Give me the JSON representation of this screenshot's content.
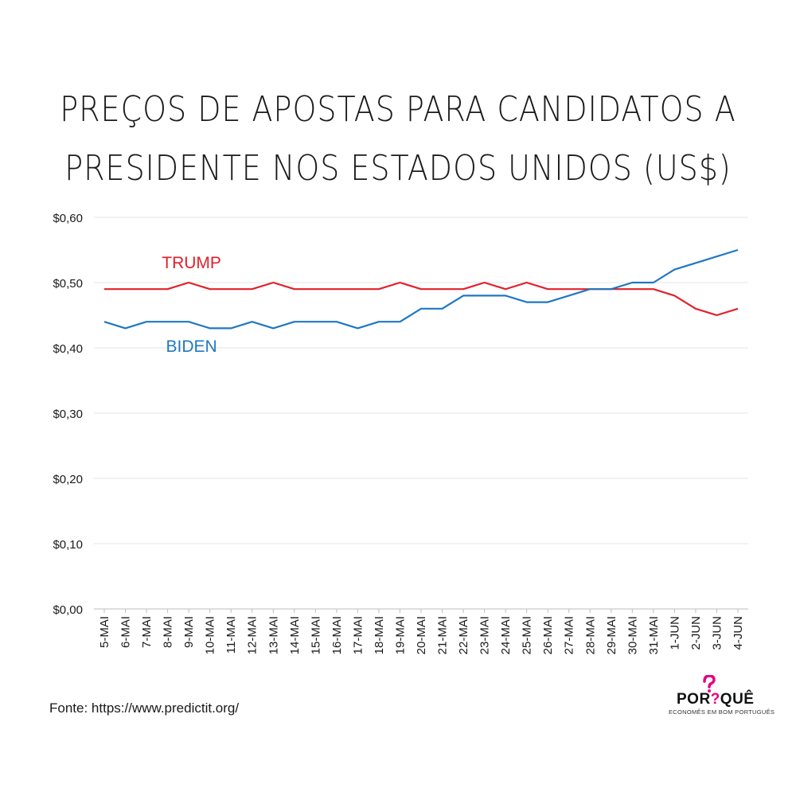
{
  "title_lines": [
    "PREÇOS DE APOSTAS PARA CANDIDATOS A",
    "PRESIDENTE NOS ESTADOS UNIDOS (US$)"
  ],
  "source": "Fonte: https://www.predictit.org/",
  "logo": {
    "main_left": "POR",
    "main_mark": "?",
    "main_right": "QUÊ",
    "tagline": "ECONOMÊS EM BOM PORTUGUÊS"
  },
  "chart_data": {
    "type": "line",
    "title": "PREÇOS DE APOSTAS PARA CANDIDATOS A PRESIDENTE NOS ESTADOS UNIDOS (US$)",
    "xlabel": "",
    "ylabel": "",
    "ylim": [
      0,
      0.6
    ],
    "yticks": [
      0,
      0.1,
      0.2,
      0.3,
      0.4,
      0.5,
      0.6
    ],
    "ytick_labels": [
      "$0,00",
      "$0,10",
      "$0,20",
      "$0,30",
      "$0,40",
      "$0,50",
      "$0,60"
    ],
    "grid": true,
    "categories": [
      "5-MAI",
      "6-MAI",
      "7-MAI",
      "8-MAI",
      "9-MAI",
      "10-MAI",
      "11-MAI",
      "12-MAI",
      "13-MAI",
      "14-MAI",
      "15-MAI",
      "16-MAI",
      "17-MAI",
      "18-MAI",
      "19-MAI",
      "20-MAI",
      "21-MAI",
      "22-MAI",
      "23-MAI",
      "24-MAI",
      "25-MAI",
      "26-MAI",
      "27-MAI",
      "28-MAI",
      "29-MAI",
      "30-MAI",
      "31-MAI",
      "1-JUN",
      "2-JUN",
      "3-JUN",
      "4-JUN"
    ],
    "series": [
      {
        "name": "TRUMP",
        "color": "#e3202a",
        "label_at": 3,
        "values": [
          0.49,
          0.49,
          0.49,
          0.49,
          0.5,
          0.49,
          0.49,
          0.49,
          0.5,
          0.49,
          0.49,
          0.49,
          0.49,
          0.49,
          0.5,
          0.49,
          0.49,
          0.49,
          0.5,
          0.49,
          0.5,
          0.49,
          0.49,
          0.49,
          0.49,
          0.49,
          0.49,
          0.48,
          0.46,
          0.45,
          0.46
        ]
      },
      {
        "name": "BIDEN",
        "color": "#1f78c1",
        "label_at": 3,
        "values": [
          0.44,
          0.43,
          0.44,
          0.44,
          0.44,
          0.43,
          0.43,
          0.44,
          0.43,
          0.44,
          0.44,
          0.44,
          0.43,
          0.44,
          0.44,
          0.46,
          0.46,
          0.48,
          0.48,
          0.48,
          0.47,
          0.47,
          0.48,
          0.49,
          0.49,
          0.5,
          0.5,
          0.52,
          0.53,
          0.54,
          0.55
        ]
      }
    ]
  }
}
